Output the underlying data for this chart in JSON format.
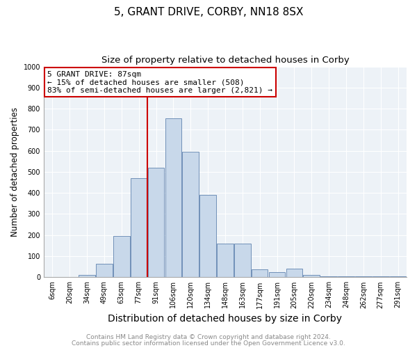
{
  "title": "5, GRANT DRIVE, CORBY, NN18 8SX",
  "subtitle": "Size of property relative to detached houses in Corby",
  "xlabel": "Distribution of detached houses by size in Corby",
  "ylabel": "Number of detached properties",
  "categories": [
    "6sqm",
    "20sqm",
    "34sqm",
    "49sqm",
    "63sqm",
    "77sqm",
    "91sqm",
    "106sqm",
    "120sqm",
    "134sqm",
    "148sqm",
    "163sqm",
    "177sqm",
    "191sqm",
    "205sqm",
    "220sqm",
    "234sqm",
    "248sqm",
    "262sqm",
    "277sqm",
    "291sqm"
  ],
  "values": [
    0,
    0,
    11,
    63,
    195,
    470,
    520,
    755,
    595,
    390,
    160,
    160,
    38,
    25,
    42,
    10,
    5,
    5,
    3,
    5,
    5
  ],
  "bar_color": "#c8d8ea",
  "bar_edge_color": "#7090b8",
  "annotation_text_line1": "5 GRANT DRIVE: 87sqm",
  "annotation_text_line2": "← 15% of detached houses are smaller (508)",
  "annotation_text_line3": "83% of semi-detached houses are larger (2,821) →",
  "annotation_box_color": "#ffffff",
  "annotation_box_edge": "#cc0000",
  "vline_color": "#cc0000",
  "vline_x_index": 5.5,
  "ylim": [
    0,
    1000
  ],
  "yticks": [
    0,
    100,
    200,
    300,
    400,
    500,
    600,
    700,
    800,
    900,
    1000
  ],
  "footnote1": "Contains HM Land Registry data © Crown copyright and database right 2024.",
  "footnote2": "Contains public sector information licensed under the Open Government Licence v3.0.",
  "plot_bg_color": "#edf2f7",
  "fig_bg_color": "#ffffff",
  "title_fontsize": 11,
  "subtitle_fontsize": 9.5,
  "xlabel_fontsize": 10,
  "ylabel_fontsize": 8.5,
  "tick_fontsize": 7,
  "annotation_fontsize": 8,
  "footnote_fontsize": 6.5,
  "grid_color": "#ffffff"
}
